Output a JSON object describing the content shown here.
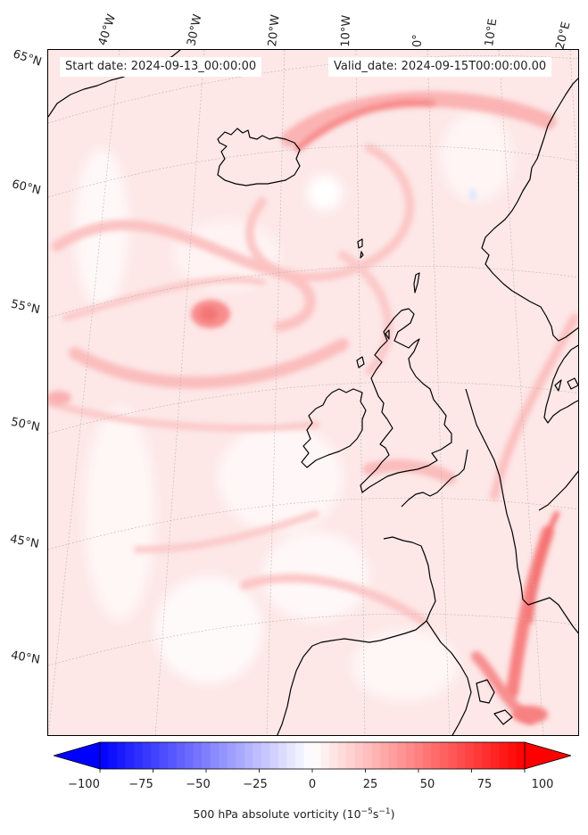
{
  "info": {
    "start_date": "Start date: 2024-09-13_00:00:00",
    "valid_date": "Valid_date: 2024-09-15T00:00:00.00"
  },
  "graticule": {
    "longitudes": [
      "40°W",
      "30°W",
      "20°W",
      "10°W",
      "0°",
      "10°E",
      "20°E"
    ],
    "latitudes": [
      "65°N",
      "60°N",
      "55°N",
      "50°N",
      "45°N",
      "40°N"
    ]
  },
  "colorbar": {
    "ticks": [
      "−100",
      "−75",
      "−50",
      "−25",
      "0",
      "25",
      "50",
      "75",
      "100"
    ],
    "tick_values": [
      -100,
      -75,
      -50,
      -25,
      0,
      25,
      50,
      75,
      100
    ],
    "range": [
      -100,
      100
    ],
    "colormap": "bwr",
    "color_low": "#0000ff",
    "color_mid": "#ffffff",
    "color_high": "#ff0000",
    "title": "500 hPa absolute vorticity (10",
    "title_exp1": "−5",
    "title_mid": "s",
    "title_exp2": "−1",
    "title_end": ")"
  },
  "map": {
    "field": "500 hPa absolute vorticity",
    "background_color": "#fde7e7",
    "coastline_color": "#000000"
  }
}
